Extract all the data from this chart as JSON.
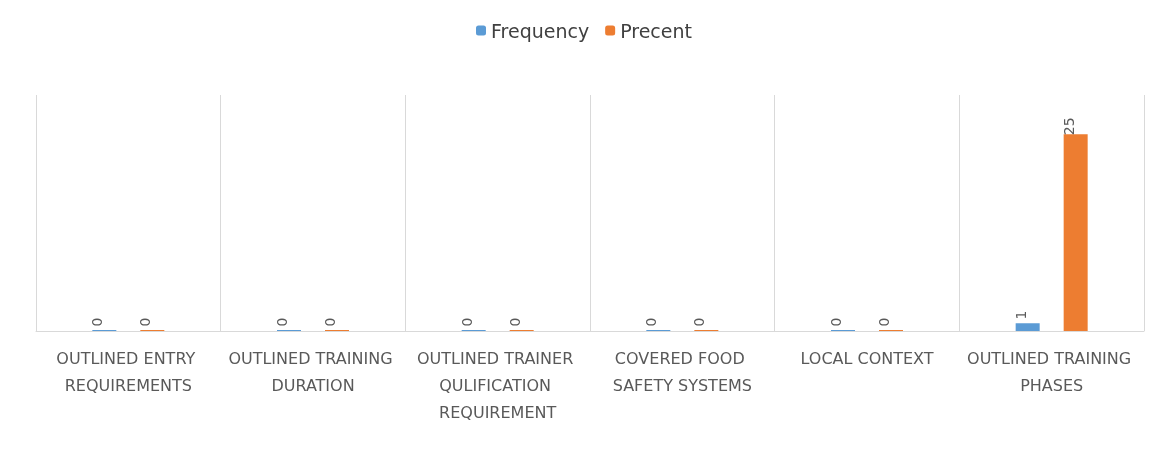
{
  "chart_data": {
    "type": "bar",
    "categories": [
      "OUTLINED ENTRY REQUIREMENTS",
      "OUTLINED TRAINING DURATION",
      "OUTLINED TRAINER QULIFICATION REQUIREMENT",
      "COVERED FOOD SAFETY SYSTEMS",
      "LOCAL CONTEXT",
      "OUTLINED TRAINING PHASES"
    ],
    "series": [
      {
        "name": "Frequency",
        "color": "#5b9bd5",
        "values": [
          0,
          0,
          0,
          0,
          0,
          1
        ]
      },
      {
        "name": "Precent",
        "color": "#ed7d31",
        "values": [
          0,
          0,
          0,
          0,
          0,
          25
        ]
      }
    ],
    "data_labels": true,
    "grid": "x",
    "legend": "top"
  }
}
